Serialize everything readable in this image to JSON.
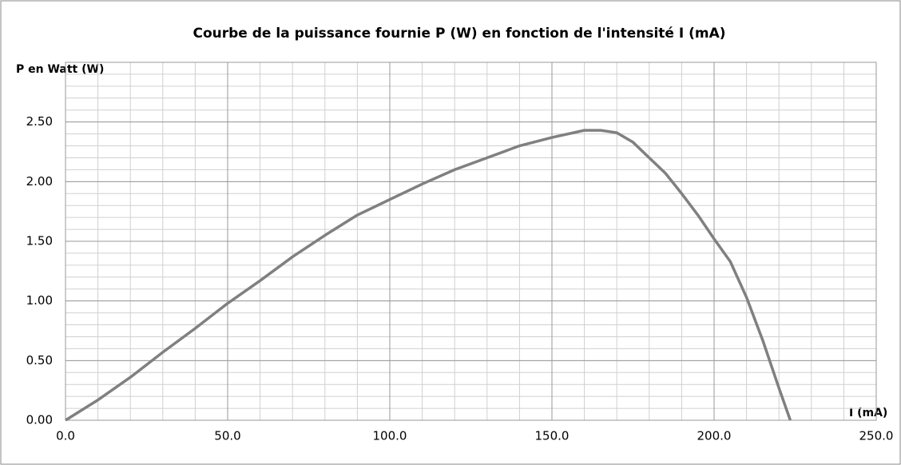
{
  "chart_data": {
    "type": "line",
    "title": "Courbe de la puissance  fournie P (W) en fonction de l'intensité I  (mA)",
    "y_label": "P en Watt (W)",
    "x_label": "I (mA)",
    "x": [
      0,
      10,
      20,
      30,
      40,
      50,
      60,
      70,
      80,
      90,
      100,
      110,
      120,
      130,
      140,
      150,
      160,
      165,
      170,
      175,
      180,
      185,
      190,
      195,
      200,
      205,
      210,
      215,
      220,
      223.5
    ],
    "series": [
      {
        "name": "P",
        "color": "#808080",
        "values": [
          0,
          0.17,
          0.36,
          0.57,
          0.77,
          0.98,
          1.17,
          1.37,
          1.55,
          1.72,
          1.85,
          1.98,
          2.1,
          2.2,
          2.3,
          2.37,
          2.43,
          2.43,
          2.41,
          2.33,
          2.2,
          2.07,
          1.9,
          1.72,
          1.52,
          1.33,
          1.03,
          0.67,
          0.27,
          0
        ]
      }
    ],
    "xlim": [
      0,
      250
    ],
    "ylim": [
      0,
      3
    ],
    "xticks": [
      {
        "value": 0,
        "label": "0.0"
      },
      {
        "value": 50,
        "label": "50.0"
      },
      {
        "value": 100,
        "label": "100.0"
      },
      {
        "value": 150,
        "label": "150.0"
      },
      {
        "value": 200,
        "label": "200.0"
      },
      {
        "value": 250,
        "label": "250.0"
      }
    ],
    "yticks": [
      {
        "value": 0,
        "label": "0.00"
      },
      {
        "value": 0.5,
        "label": "0.50"
      },
      {
        "value": 1,
        "label": "1.00"
      },
      {
        "value": 1.5,
        "label": "1.50"
      },
      {
        "value": 2,
        "label": "2.00"
      },
      {
        "value": 2.5,
        "label": "2.50"
      }
    ],
    "x_minor_step": 10,
    "y_minor_step": 0.1,
    "grid": true
  }
}
